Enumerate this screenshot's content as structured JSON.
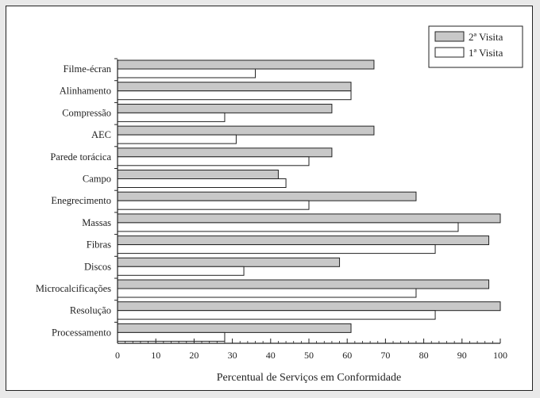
{
  "chart_data": {
    "type": "bar",
    "orientation": "horizontal",
    "title": "",
    "xlabel": "Percentual de Serviços em Conformidade",
    "ylabel": "",
    "xlim": [
      0,
      100
    ],
    "xticks": [
      0,
      10,
      20,
      30,
      40,
      50,
      60,
      70,
      80,
      90,
      100
    ],
    "grid": false,
    "legend_position": "top-right",
    "categories": [
      "Filme-écran",
      "Alinhamento",
      "Compressão",
      "AEC",
      "Parede torácica",
      "Campo",
      "Enegrecimento",
      "Massas",
      "Fibras",
      "Discos",
      "Microcalcificações",
      "Resolução",
      "Processamento"
    ],
    "series": [
      {
        "name": "2ª Visita",
        "color": "#c8c8c8",
        "values": [
          67,
          61,
          56,
          67,
          56,
          42,
          78,
          100,
          97,
          58,
          97,
          100,
          61
        ]
      },
      {
        "name": "1ª Visita",
        "color": "#ffffff",
        "values": [
          36,
          61,
          28,
          31,
          50,
          44,
          50,
          89,
          83,
          33,
          78,
          83,
          28
        ]
      }
    ]
  }
}
